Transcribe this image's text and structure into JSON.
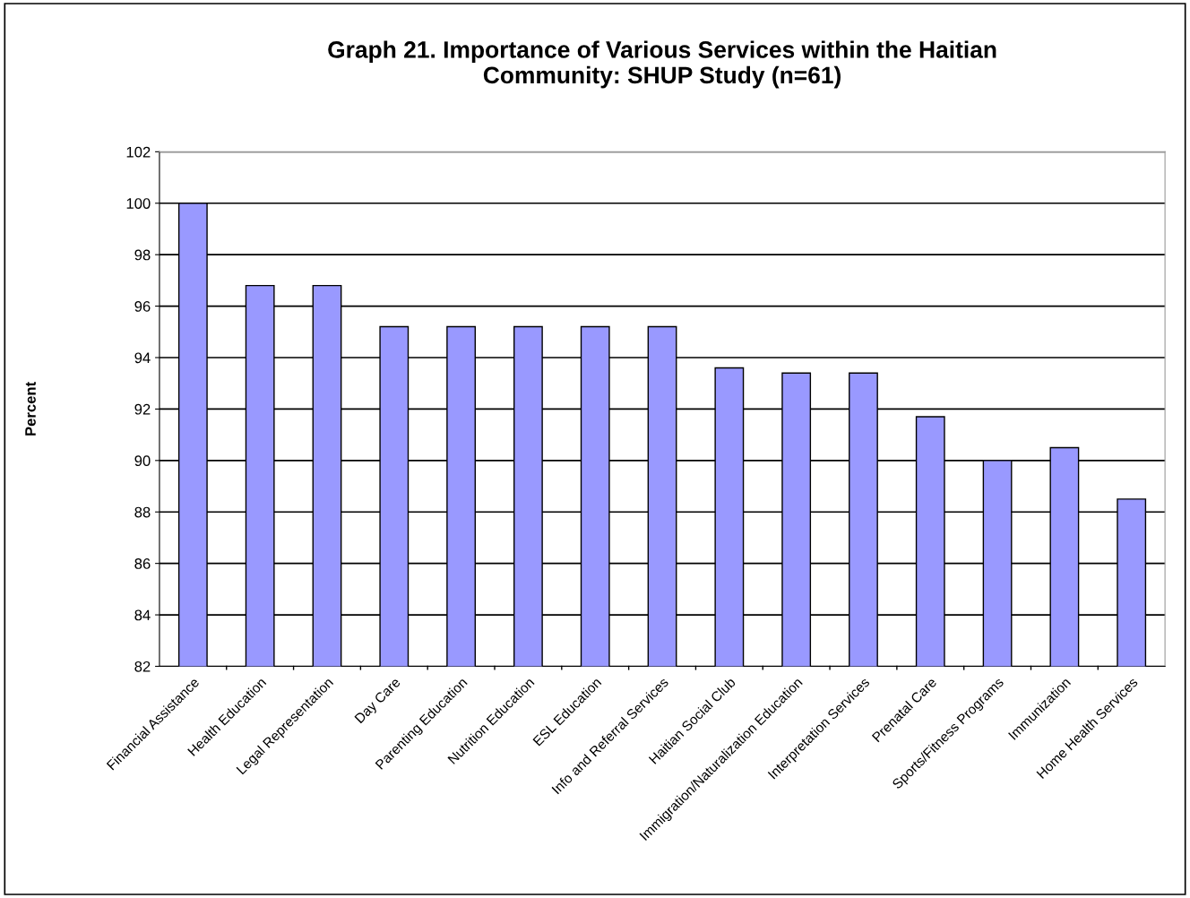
{
  "chart_data": {
    "type": "bar",
    "title": "Graph 21. Importance of Various Services within the Haitian\nCommunity: SHUP Study (n=61)",
    "ylabel": "Percent",
    "categories": [
      "Financial Assistance",
      "Health Education",
      "Legal Representation",
      "Day Care",
      "Parenting Education",
      "Nutrition Education",
      "ESL Education",
      "Info and Referral Services",
      "Haitian Social Club",
      "Immigration/Naturalization Education",
      "Interpretation Services",
      "Prenatal Care",
      "Sports/Fitness Programs",
      "Immunization",
      "Home Health Services"
    ],
    "values": [
      100,
      96.8,
      96.8,
      95.2,
      95.2,
      95.2,
      95.2,
      95.2,
      93.6,
      93.4,
      93.4,
      91.7,
      90.0,
      90.5,
      88.5
    ],
    "color": "#9999ff",
    "ylim": [
      82,
      102
    ],
    "yticks": [
      82,
      84,
      86,
      88,
      90,
      92,
      94,
      96,
      98,
      100,
      102
    ],
    "grid": "y",
    "legend": false
  }
}
